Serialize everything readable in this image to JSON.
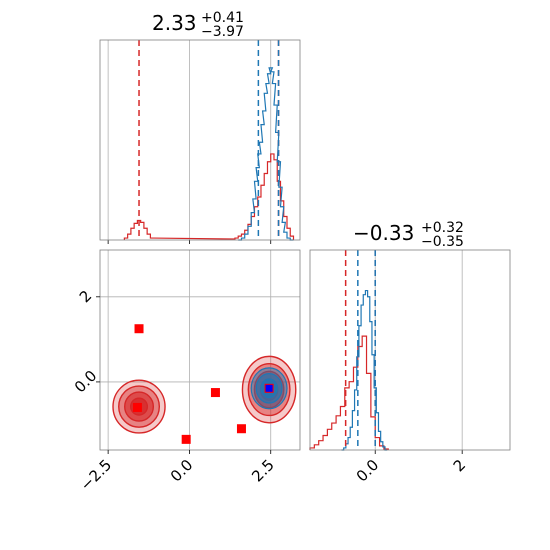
{
  "chart_data": {
    "type": "corner",
    "colors": {
      "red": "#d62728",
      "blue": "#1f77b4",
      "marker": "#ff0000",
      "truth": "#0000ff"
    },
    "panels": [
      {
        "id": "hist_p0",
        "title": {
          "value": "2.33",
          "upper": "+0.41",
          "lower": "−3.97"
        },
        "xlim": [
          -2.75,
          3.4
        ],
        "xticks": [
          -2.5,
          0.0,
          2.5
        ],
        "vlines_red": [
          -1.55,
          2.74
        ],
        "vlines_blue": [
          2.12,
          2.74
        ],
        "red_series": {
          "x": [
            -1.95,
            -1.85,
            -1.75,
            -1.65,
            -1.55,
            -1.45,
            -1.35,
            -1.25,
            -1.15,
            1.35,
            1.45,
            1.55,
            1.65,
            1.75,
            1.85,
            1.95,
            2.05,
            2.15,
            2.25,
            2.35,
            2.45,
            2.55,
            2.65,
            2.75,
            2.85,
            2.95,
            3.05,
            3.15
          ],
          "y": [
            2,
            6,
            12,
            17,
            20,
            18,
            12,
            6,
            2,
            1,
            2,
            4,
            6,
            10,
            16,
            24,
            34,
            44,
            56,
            68,
            80,
            88,
            82,
            60,
            40,
            24,
            12,
            4
          ]
        },
        "blue_series": {
          "x": [
            1.55,
            1.65,
            1.75,
            1.85,
            1.95,
            2.0,
            2.05,
            2.1,
            2.15,
            2.2,
            2.25,
            2.3,
            2.35,
            2.4,
            2.45,
            2.5,
            2.55,
            2.6,
            2.65,
            2.7,
            2.75,
            2.8,
            2.85,
            2.9,
            2.95,
            3.05,
            3.15
          ],
          "y": [
            0,
            2,
            6,
            14,
            28,
            42,
            60,
            74,
            88,
            100,
            118,
            132,
            150,
            160,
            170,
            176,
            172,
            160,
            138,
            110,
            80,
            54,
            34,
            18,
            8,
            2,
            0
          ]
        },
        "ymax": 180
      },
      {
        "id": "hist_p1",
        "title": {
          "value": "−0.33",
          "upper": "+0.32",
          "lower": "−0.35"
        },
        "xlim": [
          -1.5,
          3.1
        ],
        "xticks": [
          0,
          2
        ],
        "vlines_red": [
          -0.68,
          0.0
        ],
        "vlines_blue": [
          -0.4,
          0.0
        ],
        "red_series": {
          "x": [
            -1.45,
            -1.35,
            -1.25,
            -1.15,
            -1.05,
            -0.95,
            -0.85,
            -0.75,
            -0.65,
            -0.55,
            -0.45,
            -0.35,
            -0.25,
            -0.15,
            -0.05,
            0.05,
            0.15,
            0.25
          ],
          "y": [
            2,
            5,
            9,
            14,
            20,
            26,
            33,
            42,
            60,
            66,
            80,
            100,
            110,
            74,
            32,
            12,
            4,
            1
          ]
        },
        "blue_series": {
          "x": [
            -0.75,
            -0.7,
            -0.65,
            -0.6,
            -0.55,
            -0.5,
            -0.45,
            -0.4,
            -0.35,
            -0.3,
            -0.25,
            -0.2,
            -0.15,
            -0.1,
            -0.05,
            0.0,
            0.05,
            0.1,
            0.15,
            0.2,
            0.25
          ],
          "y": [
            0,
            2,
            6,
            12,
            22,
            38,
            58,
            90,
            120,
            140,
            150,
            154,
            148,
            124,
            92,
            60,
            36,
            18,
            8,
            3,
            0
          ]
        },
        "ymax": 170
      },
      {
        "id": "scatter_p0_p1",
        "xlim": [
          -2.75,
          3.4
        ],
        "ylim": [
          -1.6,
          3.1
        ],
        "xticks": [
          -2.5,
          0.0,
          2.5
        ],
        "yticks": [
          0,
          2
        ],
        "red_markers": [
          {
            "x": -1.55,
            "y": 1.25
          },
          {
            "x": -1.6,
            "y": -0.6
          },
          {
            "x": -0.1,
            "y": -1.35
          },
          {
            "x": 0.8,
            "y": -0.25
          },
          {
            "x": 1.6,
            "y": -1.1
          },
          {
            "x": 2.45,
            "y": -0.15
          }
        ],
        "truth_marker": {
          "x": 2.45,
          "y": -0.15
        },
        "red_contours": [
          {
            "cx": -1.55,
            "cy": -0.58,
            "rx": 0.8,
            "ry": 0.62
          },
          {
            "cx": 2.45,
            "cy": -0.18,
            "rx": 0.82,
            "ry": 0.78
          }
        ],
        "blue_contour": {
          "cx": 2.45,
          "cy": -0.15,
          "rx": 0.55,
          "ry": 0.48
        }
      }
    ]
  }
}
